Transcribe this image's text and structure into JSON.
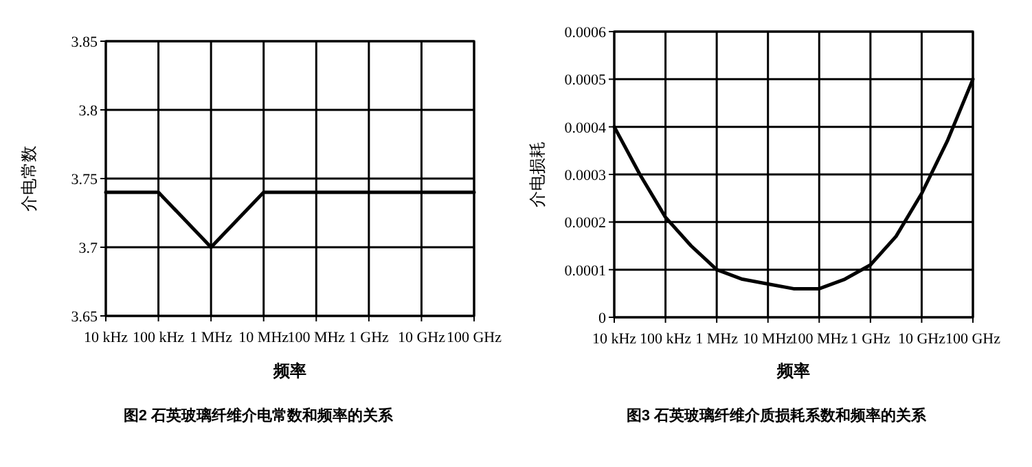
{
  "chart_data": [
    {
      "type": "line",
      "ylabel": "介电常数",
      "xlabel": "频率",
      "annotations": [
        "图2 石英玻璃纤维介电常数和频率的关系"
      ],
      "grid": true,
      "marker": "none",
      "line_style": "solid",
      "categories": [
        "10 kHz",
        "100 kHz",
        "1 MHz",
        "10 MHz",
        "100 MHz",
        "1 GHz",
        "10 GHz",
        "100 GHz"
      ],
      "ylim": [
        3.65,
        3.85
      ],
      "yticks": [
        3.65,
        3.7,
        3.75,
        3.8,
        3.85
      ],
      "series": [
        {
          "color": "#000000",
          "values": [
            3.74,
            3.74,
            3.7,
            3.74,
            3.74,
            3.74,
            3.74,
            3.74
          ]
        }
      ]
    },
    {
      "type": "line",
      "ylabel": "介电损耗",
      "xlabel": "频率",
      "annotations": [
        "图3 石英玻璃纤维介质损耗系数和频率的关系"
      ],
      "grid": true,
      "marker": "none",
      "line_style": "solid",
      "categories": [
        "10 kHz",
        null,
        "100 kHz",
        null,
        "1 MHz",
        null,
        "10 MHz",
        null,
        "100 MHz",
        null,
        "1 GHz",
        null,
        "10 GHz",
        null,
        "100 GHz"
      ],
      "ylim": [
        0,
        0.0006
      ],
      "yticks": [
        0,
        0.0001,
        0.0002,
        0.0003,
        0.0004,
        0.0005,
        0.0006
      ],
      "series": [
        {
          "color": "#000000",
          "values": [
            0.0004,
            0.0003,
            0.00021,
            0.00015,
            0.0001,
            8e-05,
            7e-05,
            6e-05,
            6e-05,
            8e-05,
            0.00011,
            0.00017,
            0.00026,
            0.00037,
            0.0005
          ]
        }
      ]
    }
  ]
}
